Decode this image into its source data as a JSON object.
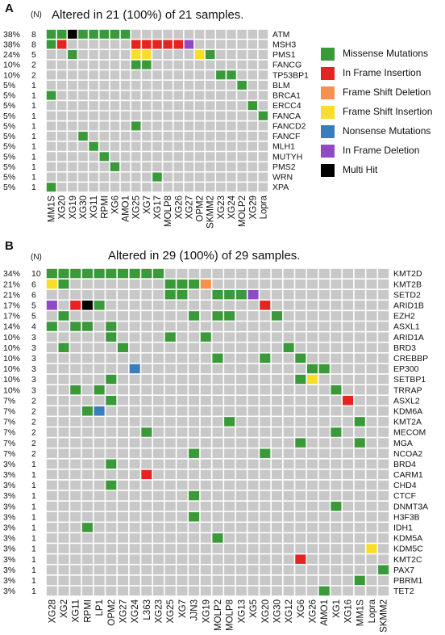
{
  "colors": {
    "empty": "#c8c8c8",
    "missense": "#3a9a3a",
    "in_frame_insertion": "#e52421",
    "frame_shift_deletion": "#f39150",
    "frame_shift_insertion": "#f9dd28",
    "nonsense": "#3b7cbd",
    "in_frame_deletion": "#8f4bc4",
    "multi_hit": "#000000"
  },
  "legend": [
    {
      "key": "missense",
      "label": "Missense Mutations"
    },
    {
      "key": "in_frame_insertion",
      "label": "In Frame Insertion"
    },
    {
      "key": "frame_shift_deletion",
      "label": "Frame Shift Deletion"
    },
    {
      "key": "frame_shift_insertion",
      "label": "Frame Shift Insertion"
    },
    {
      "key": "nonsense",
      "label": "Nonsense Mutations"
    },
    {
      "key": "in_frame_deletion",
      "label": "In Frame Deletion"
    },
    {
      "key": "multi_hit",
      "label": "Multi Hit"
    }
  ],
  "panelA": {
    "letter": "A",
    "n_label": "(N)",
    "title": "Altered in 21 (100%) of 21 samples."
  },
  "panelB": {
    "letter": "B",
    "n_label": "(N)",
    "title": "Altered in 29 (100%) of 29 samples."
  },
  "chart_data": [
    {
      "type": "heatmap",
      "title": "Altered in 21 (100%) of 21 samples.",
      "samples": [
        "MM1S",
        "XG20",
        "XG19",
        "XG30",
        "XG11",
        "RPMI",
        "XG6",
        "AMO1",
        "XG25",
        "XG7",
        "XG17",
        "MOLP8",
        "XG26",
        "XG27",
        "OPM2",
        "SKMM2",
        "XG23",
        "XG24",
        "MOLP2",
        "XG29",
        "Lopra"
      ],
      "genes": [
        {
          "name": "ATM",
          "pct": "38%",
          "n": "8"
        },
        {
          "name": "MSH3",
          "pct": "38%",
          "n": "8"
        },
        {
          "name": "PMS1",
          "pct": "24%",
          "n": "5"
        },
        {
          "name": "FANCG",
          "pct": "10%",
          "n": "2"
        },
        {
          "name": "TP53BP1",
          "pct": "10%",
          "n": "2"
        },
        {
          "name": "BLM",
          "pct": "5%",
          "n": "1"
        },
        {
          "name": "BRCA1",
          "pct": "5%",
          "n": "1"
        },
        {
          "name": "ERCC4",
          "pct": "5%",
          "n": "1"
        },
        {
          "name": "FANCA",
          "pct": "5%",
          "n": "1"
        },
        {
          "name": "FANCD2",
          "pct": "5%",
          "n": "1"
        },
        {
          "name": "FANCF",
          "pct": "5%",
          "n": "1"
        },
        {
          "name": "MLH1",
          "pct": "5%",
          "n": "1"
        },
        {
          "name": "MUTYH",
          "pct": "5%",
          "n": "1"
        },
        {
          "name": "PMS2",
          "pct": "5%",
          "n": "1"
        },
        {
          "name": "WRN",
          "pct": "5%",
          "n": "1"
        },
        {
          "name": "XPA",
          "pct": "5%",
          "n": "1"
        }
      ],
      "mutations": [
        [
          "ATM",
          "MM1S",
          "missense"
        ],
        [
          "ATM",
          "XG20",
          "missense"
        ],
        [
          "ATM",
          "XG19",
          "multi_hit"
        ],
        [
          "ATM",
          "XG30",
          "missense"
        ],
        [
          "ATM",
          "XG11",
          "missense"
        ],
        [
          "ATM",
          "RPMI",
          "missense"
        ],
        [
          "ATM",
          "XG6",
          "missense"
        ],
        [
          "ATM",
          "AMO1",
          "missense"
        ],
        [
          "MSH3",
          "MM1S",
          "missense"
        ],
        [
          "MSH3",
          "XG20",
          "in_frame_insertion"
        ],
        [
          "MSH3",
          "XG25",
          "in_frame_insertion"
        ],
        [
          "MSH3",
          "XG7",
          "in_frame_insertion"
        ],
        [
          "MSH3",
          "XG17",
          "in_frame_insertion"
        ],
        [
          "MSH3",
          "MOLP8",
          "in_frame_insertion"
        ],
        [
          "MSH3",
          "XG26",
          "in_frame_insertion"
        ],
        [
          "MSH3",
          "XG27",
          "in_frame_deletion"
        ],
        [
          "PMS1",
          "XG19",
          "missense"
        ],
        [
          "PMS1",
          "XG25",
          "frame_shift_insertion"
        ],
        [
          "PMS1",
          "XG7",
          "frame_shift_insertion"
        ],
        [
          "PMS1",
          "OPM2",
          "frame_shift_insertion"
        ],
        [
          "PMS1",
          "SKMM2",
          "missense"
        ],
        [
          "FANCG",
          "XG25",
          "missense"
        ],
        [
          "FANCG",
          "XG7",
          "missense"
        ],
        [
          "TP53BP1",
          "XG23",
          "missense"
        ],
        [
          "TP53BP1",
          "XG24",
          "missense"
        ],
        [
          "BLM",
          "MOLP2",
          "missense"
        ],
        [
          "BRCA1",
          "MM1S",
          "missense"
        ],
        [
          "ERCC4",
          "XG29",
          "missense"
        ],
        [
          "FANCA",
          "Lopra",
          "missense"
        ],
        [
          "FANCD2",
          "XG25",
          "missense"
        ],
        [
          "FANCF",
          "XG30",
          "missense"
        ],
        [
          "MLH1",
          "XG11",
          "missense"
        ],
        [
          "MUTYH",
          "RPMI",
          "missense"
        ],
        [
          "PMS2",
          "XG6",
          "missense"
        ],
        [
          "WRN",
          "XG17",
          "missense"
        ],
        [
          "XPA",
          "MM1S",
          "missense"
        ]
      ]
    },
    {
      "type": "heatmap",
      "title": "Altered in 29 (100%) of 29 samples.",
      "samples": [
        "XG28",
        "XG2",
        "XG11",
        "RPMI",
        "LP1",
        "OPM2",
        "XG27",
        "XG24",
        "L363",
        "XG23",
        "XG25",
        "XG7",
        "JJN3",
        "XG19",
        "MOLP2",
        "MOLP8",
        "XG13",
        "XG5",
        "XG20",
        "XG30",
        "XG12",
        "XG6",
        "XG26",
        "AMO1",
        "XG1",
        "XG16",
        "MM1S",
        "Lopra",
        "SKMM2"
      ],
      "genes": [
        {
          "name": "KMT2D",
          "pct": "34%",
          "n": "10"
        },
        {
          "name": "KMT2B",
          "pct": "21%",
          "n": "6"
        },
        {
          "name": "SETD2",
          "pct": "21%",
          "n": "6"
        },
        {
          "name": "ARID1B",
          "pct": "17%",
          "n": "5"
        },
        {
          "name": "EZH2",
          "pct": "17%",
          "n": "5"
        },
        {
          "name": "ASXL1",
          "pct": "14%",
          "n": "4"
        },
        {
          "name": "ARID1A",
          "pct": "10%",
          "n": "3"
        },
        {
          "name": "BRD3",
          "pct": "10%",
          "n": "3"
        },
        {
          "name": "CREBBP",
          "pct": "10%",
          "n": "3"
        },
        {
          "name": "EP300",
          "pct": "10%",
          "n": "3"
        },
        {
          "name": "SETBP1",
          "pct": "10%",
          "n": "3"
        },
        {
          "name": "TRRAP",
          "pct": "10%",
          "n": "3"
        },
        {
          "name": "ASXL2",
          "pct": "7%",
          "n": "2"
        },
        {
          "name": "KDM6A",
          "pct": "7%",
          "n": "2"
        },
        {
          "name": "KMT2A",
          "pct": "7%",
          "n": "2"
        },
        {
          "name": "MECOM",
          "pct": "7%",
          "n": "2"
        },
        {
          "name": "MGA",
          "pct": "7%",
          "n": "2"
        },
        {
          "name": "NCOA2",
          "pct": "7%",
          "n": "2"
        },
        {
          "name": "BRD4",
          "pct": "3%",
          "n": "1"
        },
        {
          "name": "CARM1",
          "pct": "3%",
          "n": "1"
        },
        {
          "name": "CHD4",
          "pct": "3%",
          "n": "1"
        },
        {
          "name": "CTCF",
          "pct": "3%",
          "n": "1"
        },
        {
          "name": "DNMT3A",
          "pct": "3%",
          "n": "1"
        },
        {
          "name": "H3F3B",
          "pct": "3%",
          "n": "1"
        },
        {
          "name": "IDH1",
          "pct": "3%",
          "n": "1"
        },
        {
          "name": "KDM5A",
          "pct": "3%",
          "n": "1"
        },
        {
          "name": "KDM5C",
          "pct": "3%",
          "n": "1"
        },
        {
          "name": "KMT2C",
          "pct": "3%",
          "n": "1"
        },
        {
          "name": "PAX7",
          "pct": "3%",
          "n": "1"
        },
        {
          "name": "PBRM1",
          "pct": "3%",
          "n": "1"
        },
        {
          "name": "TET2",
          "pct": "3%",
          "n": "1"
        }
      ],
      "mutations": [
        [
          "KMT2D",
          "XG28",
          "missense"
        ],
        [
          "KMT2D",
          "XG2",
          "missense"
        ],
        [
          "KMT2D",
          "XG11",
          "missense"
        ],
        [
          "KMT2D",
          "RPMI",
          "missense"
        ],
        [
          "KMT2D",
          "LP1",
          "missense"
        ],
        [
          "KMT2D",
          "OPM2",
          "missense"
        ],
        [
          "KMT2D",
          "XG27",
          "missense"
        ],
        [
          "KMT2D",
          "XG24",
          "missense"
        ],
        [
          "KMT2D",
          "L363",
          "missense"
        ],
        [
          "KMT2D",
          "XG23",
          "missense"
        ],
        [
          "KMT2B",
          "XG28",
          "frame_shift_insertion"
        ],
        [
          "KMT2B",
          "XG2",
          "missense"
        ],
        [
          "KMT2B",
          "XG25",
          "missense"
        ],
        [
          "KMT2B",
          "XG7",
          "missense"
        ],
        [
          "KMT2B",
          "JJN3",
          "missense"
        ],
        [
          "KMT2B",
          "XG19",
          "frame_shift_deletion"
        ],
        [
          "SETD2",
          "XG25",
          "missense"
        ],
        [
          "SETD2",
          "XG7",
          "missense"
        ],
        [
          "SETD2",
          "MOLP2",
          "missense"
        ],
        [
          "SETD2",
          "MOLP8",
          "missense"
        ],
        [
          "SETD2",
          "XG13",
          "missense"
        ],
        [
          "SETD2",
          "XG5",
          "in_frame_deletion"
        ],
        [
          "ARID1B",
          "XG28",
          "in_frame_deletion"
        ],
        [
          "ARID1B",
          "XG11",
          "in_frame_insertion"
        ],
        [
          "ARID1B",
          "RPMI",
          "multi_hit"
        ],
        [
          "ARID1B",
          "LP1",
          "missense"
        ],
        [
          "ARID1B",
          "XG20",
          "in_frame_insertion"
        ],
        [
          "EZH2",
          "XG2",
          "missense"
        ],
        [
          "EZH2",
          "JJN3",
          "missense"
        ],
        [
          "EZH2",
          "MOLP2",
          "missense"
        ],
        [
          "EZH2",
          "MOLP8",
          "missense"
        ],
        [
          "EZH2",
          "XG30",
          "missense"
        ],
        [
          "ASXL1",
          "XG28",
          "missense"
        ],
        [
          "ASXL1",
          "XG11",
          "missense"
        ],
        [
          "ASXL1",
          "RPMI",
          "missense"
        ],
        [
          "ASXL1",
          "OPM2",
          "missense"
        ],
        [
          "ARID1A",
          "OPM2",
          "missense"
        ],
        [
          "ARID1A",
          "XG25",
          "missense"
        ],
        [
          "ARID1A",
          "XG19",
          "missense"
        ],
        [
          "BRD3",
          "XG2",
          "missense"
        ],
        [
          "BRD3",
          "XG27",
          "missense"
        ],
        [
          "BRD3",
          "XG12",
          "missense"
        ],
        [
          "CREBBP",
          "MOLP2",
          "missense"
        ],
        [
          "CREBBP",
          "XG20",
          "missense"
        ],
        [
          "CREBBP",
          "XG6",
          "missense"
        ],
        [
          "EP300",
          "XG24",
          "nonsense"
        ],
        [
          "EP300",
          "XG26",
          "missense"
        ],
        [
          "EP300",
          "AMO1",
          "missense"
        ],
        [
          "SETBP1",
          "OPM2",
          "missense"
        ],
        [
          "SETBP1",
          "XG6",
          "missense"
        ],
        [
          "SETBP1",
          "XG26",
          "frame_shift_insertion"
        ],
        [
          "TRRAP",
          "XG11",
          "missense"
        ],
        [
          "TRRAP",
          "LP1",
          "missense"
        ],
        [
          "TRRAP",
          "XG1",
          "missense"
        ],
        [
          "ASXL2",
          "OPM2",
          "missense"
        ],
        [
          "ASXL2",
          "XG16",
          "in_frame_insertion"
        ],
        [
          "KDM6A",
          "RPMI",
          "missense"
        ],
        [
          "KDM6A",
          "LP1",
          "nonsense"
        ],
        [
          "KMT2A",
          "MOLP8",
          "missense"
        ],
        [
          "KMT2A",
          "MM1S",
          "missense"
        ],
        [
          "MECOM",
          "L363",
          "missense"
        ],
        [
          "MECOM",
          "XG1",
          "missense"
        ],
        [
          "MGA",
          "XG6",
          "missense"
        ],
        [
          "MGA",
          "MM1S",
          "missense"
        ],
        [
          "NCOA2",
          "JJN3",
          "missense"
        ],
        [
          "NCOA2",
          "XG20",
          "missense"
        ],
        [
          "BRD4",
          "OPM2",
          "missense"
        ],
        [
          "CARM1",
          "L363",
          "in_frame_insertion"
        ],
        [
          "CHD4",
          "OPM2",
          "missense"
        ],
        [
          "CTCF",
          "JJN3",
          "missense"
        ],
        [
          "DNMT3A",
          "XG1",
          "missense"
        ],
        [
          "H3F3B",
          "JJN3",
          "missense"
        ],
        [
          "IDH1",
          "RPMI",
          "missense"
        ],
        [
          "KDM5A",
          "MOLP2",
          "missense"
        ],
        [
          "KDM5C",
          "Lopra",
          "frame_shift_insertion"
        ],
        [
          "KMT2C",
          "XG6",
          "in_frame_insertion"
        ],
        [
          "PAX7",
          "SKMM2",
          "missense"
        ],
        [
          "PBRM1",
          "MM1S",
          "missense"
        ],
        [
          "TET2",
          "AMO1",
          "missense"
        ]
      ]
    }
  ]
}
